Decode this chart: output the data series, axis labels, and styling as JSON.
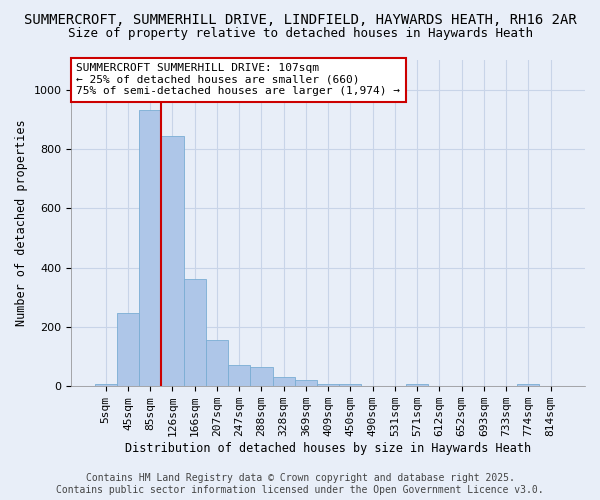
{
  "title": "SUMMERCROFT, SUMMERHILL DRIVE, LINDFIELD, HAYWARDS HEATH, RH16 2AR",
  "subtitle": "Size of property relative to detached houses in Haywards Heath",
  "xlabel": "Distribution of detached houses by size in Haywards Heath",
  "ylabel": "Number of detached properties",
  "bar_categories": [
    "5sqm",
    "45sqm",
    "85sqm",
    "126sqm",
    "166sqm",
    "207sqm",
    "247sqm",
    "288sqm",
    "328sqm",
    "369sqm",
    "409sqm",
    "450sqm",
    "490sqm",
    "531sqm",
    "571sqm",
    "612sqm",
    "652sqm",
    "693sqm",
    "733sqm",
    "774sqm",
    "814sqm"
  ],
  "bar_values": [
    8,
    248,
    930,
    845,
    360,
    155,
    70,
    65,
    30,
    20,
    8,
    8,
    0,
    0,
    8,
    0,
    0,
    0,
    0,
    8,
    0
  ],
  "bar_color": "#aec6e8",
  "bar_edge_color": "#7aadd4",
  "property_line_x": 3.0,
  "property_line_color": "#cc0000",
  "ylim": [
    0,
    1100
  ],
  "yticks": [
    0,
    200,
    400,
    600,
    800,
    1000
  ],
  "annotation_text": "SUMMERCROFT SUMMERHILL DRIVE: 107sqm\n← 25% of detached houses are smaller (660)\n75% of semi-detached houses are larger (1,974) →",
  "annotation_box_color": "#ffffff",
  "annotation_box_edge_color": "#cc0000",
  "footer_line1": "Contains HM Land Registry data © Crown copyright and database right 2025.",
  "footer_line2": "Contains public sector information licensed under the Open Government Licence v3.0.",
  "background_color": "#e8eef8",
  "grid_color": "#c8d4e8",
  "title_fontsize": 10,
  "subtitle_fontsize": 9,
  "axis_label_fontsize": 8.5,
  "tick_fontsize": 8,
  "footer_fontsize": 7,
  "annotation_fontsize": 8
}
